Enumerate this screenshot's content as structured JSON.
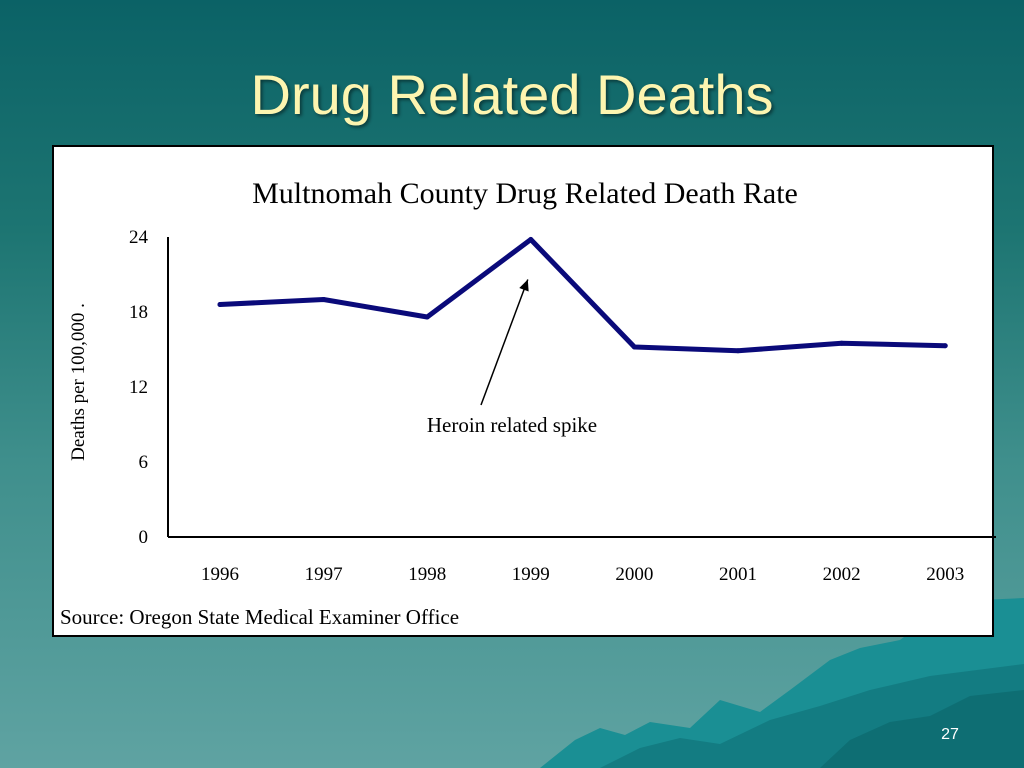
{
  "slide": {
    "title": "Drug Related Deaths",
    "page_number": "27"
  },
  "colors": {
    "background_top": "#0b6266",
    "background_bottom": "#5fa3a2",
    "title_text": "#fdf5b0",
    "series_line": "#0a0a7a"
  },
  "chart_data": {
    "type": "line",
    "title": "Multnomah County Drug Related Death Rate",
    "xlabel": "",
    "ylabel": "Deaths per 100,000 .",
    "x": [
      "1996",
      "1997",
      "1998",
      "1999",
      "2000",
      "2001",
      "2002",
      "2003"
    ],
    "series": [
      {
        "values": [
          18.6,
          19.0,
          17.6,
          23.8,
          15.2,
          14.9,
          15.5,
          15.3
        ]
      }
    ],
    "ylim": [
      0,
      24
    ],
    "yticks": [
      "0",
      "6",
      "12",
      "18",
      "24"
    ],
    "grid": false,
    "annotation": {
      "text": "Heroin related spike",
      "x": "1999",
      "y": 23.8
    },
    "source": "Source: Oregon State Medical Examiner Office"
  }
}
